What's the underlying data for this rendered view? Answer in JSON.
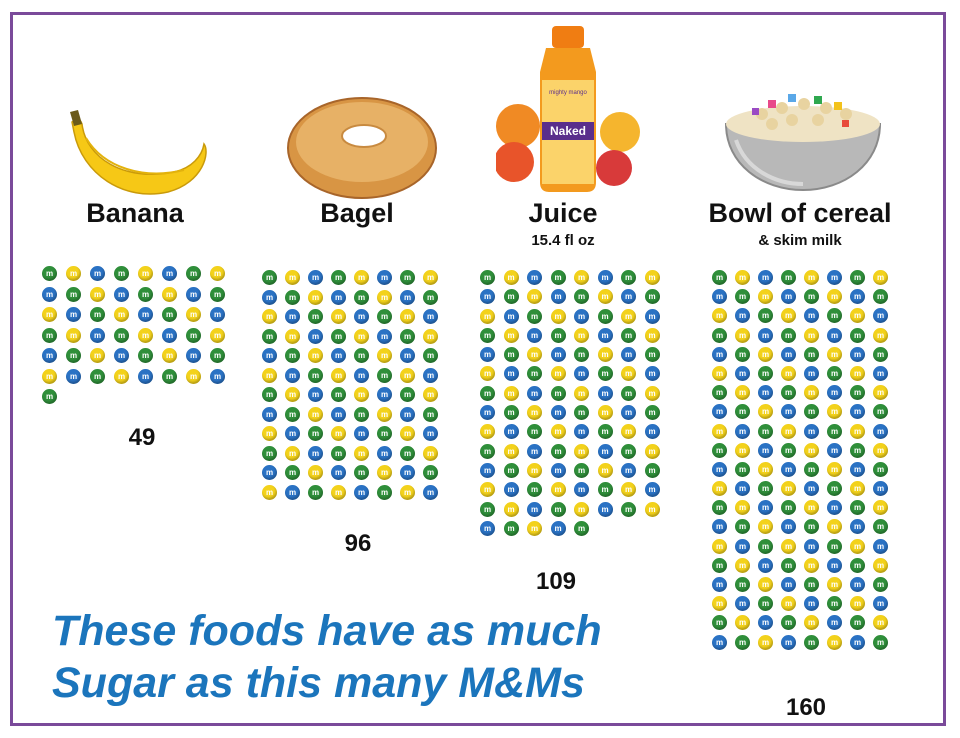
{
  "foods": [
    {
      "name": "Banana",
      "subtitle": "",
      "count_label": "49",
      "count": 49,
      "columns": 8
    },
    {
      "name": "Bagel",
      "subtitle": "",
      "count_label": "96",
      "count": 96,
      "columns": 8
    },
    {
      "name": "Juice",
      "subtitle": "15.4 fl oz",
      "count_label": "109",
      "count": 109,
      "columns": 8
    },
    {
      "name": "Bowl of cereal",
      "subtitle": "& skim milk",
      "count_label": "160",
      "count": 160,
      "columns": 8
    }
  ],
  "bottle_labels": {
    "brand": "Naked",
    "flavor": "mighty mango"
  },
  "tagline": {
    "line1": "These foods have as much",
    "line2": "Sugar as this many M&Ms"
  },
  "mm_letter": "m",
  "mm_colors": [
    "#2f8f3a",
    "#f2a31a",
    "#2a72c4",
    "#e8632a",
    "#5a2e1a",
    "#f3d21b",
    "#3a9a48",
    "#e57a22"
  ],
  "colors": {
    "frame": "#7a4a9a",
    "tagline": "#1b75bc"
  }
}
